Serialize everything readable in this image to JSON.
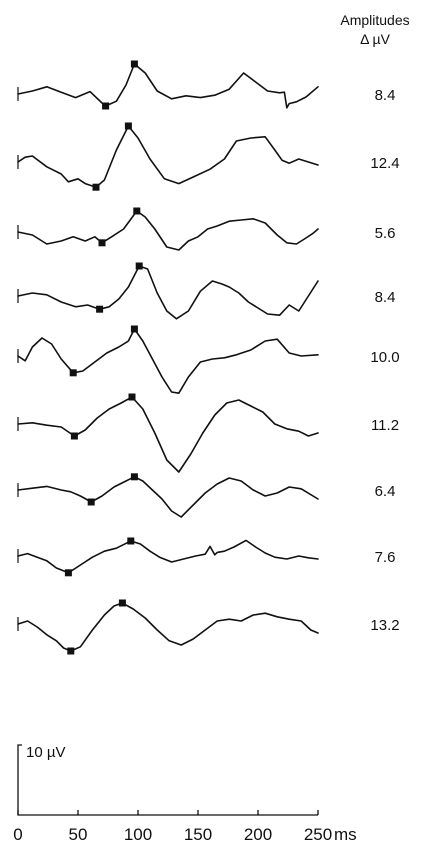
{
  "chart_data": {
    "type": "line",
    "header": {
      "line1": "Amplitudes",
      "line2": "Δ µV"
    },
    "scale_bar_label": "10 µV",
    "x_ticks": [
      "0",
      "50",
      "100",
      "150",
      "200",
      "250"
    ],
    "x_unit": "ms",
    "xlim": [
      0,
      250
    ],
    "series": [
      {
        "amplitude_label": "8.4",
        "trough_ms": 73,
        "peak_ms": 97,
        "x": [
          0,
          12,
          24,
          36,
          48,
          60,
          70,
          73,
          82,
          90,
          97,
          106,
          116,
          128,
          140,
          152,
          164,
          176,
          188,
          198,
          208,
          218,
          222,
          224,
          226,
          232,
          240,
          250
        ],
        "y": [
          0,
          0.5,
          1.2,
          0.3,
          -0.6,
          0.4,
          -1.5,
          -2.0,
          -1.2,
          1.5,
          5.0,
          3.5,
          0.5,
          -0.8,
          -0.3,
          -0.6,
          -0.2,
          0.8,
          3.5,
          2.0,
          0.5,
          0.2,
          0.3,
          -2.3,
          -1.6,
          -1.3,
          -0.5,
          1.2
        ]
      },
      {
        "amplitude_label": "12.4",
        "trough_ms": 65,
        "peak_ms": 92,
        "x": [
          0,
          6,
          12,
          24,
          36,
          42,
          50,
          56,
          62,
          65,
          72,
          82,
          92,
          100,
          110,
          122,
          134,
          146,
          160,
          172,
          182,
          194,
          206,
          214,
          220,
          226,
          234,
          242,
          250
        ],
        "y": [
          0,
          0.8,
          1.0,
          -0.8,
          -2.0,
          -3.3,
          -2.8,
          -3.6,
          -4.0,
          -4.2,
          -3.0,
          2.0,
          6.0,
          4.0,
          0.5,
          -2.8,
          -3.6,
          -2.5,
          -1.2,
          0.5,
          3.5,
          4.0,
          4.2,
          2.0,
          0.3,
          -0.2,
          0.5,
          0.0,
          -0.5
        ]
      },
      {
        "amplitude_label": "5.6",
        "trough_ms": 70,
        "peak_ms": 99,
        "x": [
          0,
          12,
          24,
          36,
          46,
          56,
          64,
          70,
          78,
          88,
          99,
          106,
          114,
          124,
          134,
          142,
          150,
          158,
          166,
          176,
          186,
          196,
          206,
          216,
          224,
          232,
          240,
          246,
          250
        ],
        "y": [
          0,
          -0.5,
          -2.0,
          -1.5,
          -0.8,
          -1.5,
          -0.8,
          -1.8,
          -0.8,
          0.5,
          3.5,
          2.5,
          0.5,
          -2.5,
          -3.0,
          -1.5,
          -0.8,
          0.5,
          1.0,
          1.8,
          2.0,
          2.2,
          1.5,
          -0.5,
          -1.8,
          -2.0,
          -1.0,
          -0.2,
          0.5
        ]
      },
      {
        "amplitude_label": "8.4",
        "trough_ms": 68,
        "peak_ms": 101,
        "x": [
          0,
          12,
          24,
          36,
          48,
          58,
          68,
          76,
          84,
          92,
          101,
          108,
          116,
          124,
          132,
          142,
          152,
          162,
          170,
          176,
          184,
          192,
          200,
          208,
          218,
          226,
          234,
          242,
          250
        ],
        "y": [
          0,
          0.5,
          0.2,
          -1.0,
          -1.8,
          -1.5,
          -2.2,
          -1.8,
          -0.5,
          1.5,
          5.0,
          4.5,
          0.5,
          -2.5,
          -3.8,
          -2.5,
          0.8,
          2.5,
          2.0,
          1.5,
          0.5,
          -1.0,
          -2.0,
          -3.0,
          -3.2,
          -1.5,
          -2.5,
          0.0,
          2.5
        ]
      },
      {
        "amplitude_label": "10.0",
        "trough_ms": 46,
        "peak_ms": 97,
        "x": [
          0,
          6,
          12,
          20,
          28,
          36,
          46,
          54,
          64,
          74,
          84,
          92,
          97,
          104,
          112,
          120,
          128,
          134,
          142,
          152,
          162,
          172,
          182,
          194,
          206,
          216,
          226,
          236,
          250
        ],
        "y": [
          0,
          -0.8,
          1.5,
          3.0,
          2.0,
          -0.5,
          -2.8,
          -2.5,
          -1.0,
          0.5,
          1.5,
          2.5,
          4.5,
          2.5,
          -0.5,
          -3.5,
          -6.0,
          -6.2,
          -3.5,
          -1.0,
          -0.5,
          -0.3,
          0.2,
          1.0,
          2.5,
          2.8,
          0.5,
          0.0,
          0.2
        ]
      },
      {
        "amplitude_label": "11.2",
        "trough_ms": 47,
        "peak_ms": 95,
        "x": [
          0,
          12,
          24,
          36,
          47,
          56,
          66,
          76,
          86,
          95,
          104,
          114,
          124,
          134,
          144,
          154,
          164,
          174,
          184,
          194,
          204,
          214,
          224,
          234,
          242,
          250
        ],
        "y": [
          0,
          0.2,
          -0.2,
          -0.5,
          -2.0,
          -1.0,
          1.0,
          2.5,
          3.5,
          4.5,
          2.5,
          -1.5,
          -6.0,
          -8.0,
          -5.0,
          -1.5,
          1.5,
          3.5,
          4.0,
          3.0,
          2.0,
          0.0,
          -0.8,
          -1.2,
          -2.0,
          -1.5
        ]
      },
      {
        "amplitude_label": "6.4",
        "trough_ms": 61,
        "peak_ms": 97,
        "x": [
          0,
          12,
          24,
          36,
          44,
          52,
          61,
          70,
          80,
          90,
          97,
          104,
          112,
          120,
          128,
          136,
          146,
          156,
          166,
          176,
          186,
          196,
          206,
          216,
          226,
          236,
          250
        ],
        "y": [
          0,
          0.3,
          0.6,
          0.0,
          -0.3,
          -1.0,
          -2.0,
          -1.0,
          0.5,
          1.5,
          2.2,
          1.5,
          0.0,
          -1.5,
          -3.5,
          -4.5,
          -2.5,
          -0.5,
          1.0,
          2.0,
          1.5,
          0.0,
          -1.0,
          -0.5,
          0.5,
          0.2,
          -1.5
        ]
      },
      {
        "amplitude_label": "7.6",
        "trough_ms": 42,
        "peak_ms": 94,
        "x": [
          0,
          8,
          16,
          24,
          32,
          42,
          52,
          62,
          72,
          82,
          94,
          102,
          110,
          118,
          128,
          138,
          148,
          156,
          160,
          164,
          166,
          172,
          180,
          190,
          198,
          206,
          214,
          224,
          234,
          242,
          250
        ],
        "y": [
          0,
          0.4,
          -0.2,
          -0.8,
          -2.0,
          -2.8,
          -1.5,
          -0.2,
          0.8,
          1.3,
          2.5,
          2.0,
          0.8,
          -0.2,
          -1.0,
          -0.5,
          0.0,
          0.3,
          1.6,
          0.2,
          0.6,
          0.8,
          1.5,
          2.6,
          1.5,
          0.5,
          -0.2,
          -0.5,
          0.0,
          -0.3,
          -0.5
        ]
      },
      {
        "amplitude_label": "13.2",
        "trough_ms": 44,
        "peak_ms": 87,
        "x": [
          0,
          8,
          16,
          24,
          32,
          38,
          44,
          52,
          62,
          72,
          80,
          87,
          96,
          106,
          116,
          126,
          136,
          146,
          156,
          166,
          176,
          186,
          196,
          206,
          216,
          226,
          236,
          244,
          250
        ],
        "y": [
          0,
          0.5,
          -0.5,
          -1.8,
          -2.8,
          -4.0,
          -4.5,
          -3.8,
          -1.0,
          1.5,
          3.0,
          3.5,
          2.5,
          1.0,
          -1.0,
          -2.8,
          -3.5,
          -2.5,
          -1.0,
          0.5,
          0.8,
          0.5,
          1.5,
          1.8,
          1.2,
          0.8,
          0.5,
          -1.0,
          -1.5
        ]
      }
    ]
  }
}
